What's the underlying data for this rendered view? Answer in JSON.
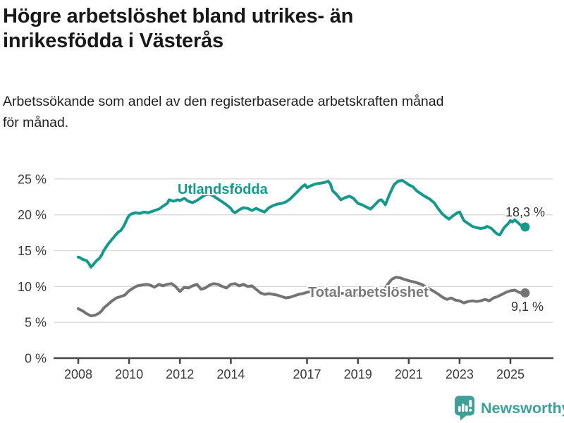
{
  "header": {
    "title_line1": "Högre arbetslöshet bland utrikes- än",
    "title_line2": "inrikesfödda i Västerås",
    "subtitle_line1": "Arbetssökande som andel av den registerbaserade arbetskraften månad",
    "subtitle_line2": "för månad."
  },
  "footer": {
    "brand": "Newsworthy"
  },
  "colors": {
    "teal": "#14998B",
    "gray": "#747474",
    "gridline": "#D9D9D9",
    "axis": "#454545",
    "tick_text": "#3B3B3B",
    "value_label": "#333333",
    "logo_teal": "#3FA09A"
  },
  "chart_data": {
    "type": "line",
    "title": "Högre arbetslöshet bland utrikes- än inrikesfödda i Västerås",
    "subtitle": "Arbetssökande som andel av den registerbaserade arbetskraften månad för månad.",
    "xlabel": "",
    "ylabel": "",
    "y_unit": "%",
    "x_range": [
      2007.6,
      2026.2
    ],
    "ylim": [
      0,
      25
    ],
    "grid": true,
    "legend_position": "inline-labels",
    "y_ticks": [
      {
        "value": 0,
        "label": "0 %"
      },
      {
        "value": 5,
        "label": "5 %"
      },
      {
        "value": 10,
        "label": "10 %"
      },
      {
        "value": 15,
        "label": "15 %"
      },
      {
        "value": 20,
        "label": "20 %"
      },
      {
        "value": 25,
        "label": "25 %"
      }
    ],
    "x_ticks": [
      {
        "value": 2008,
        "label": "2008"
      },
      {
        "value": 2010,
        "label": "2010"
      },
      {
        "value": 2012,
        "label": "2012"
      },
      {
        "value": 2014,
        "label": "2014"
      },
      {
        "value": 2017,
        "label": "2017"
      },
      {
        "value": 2019,
        "label": "2019"
      },
      {
        "value": 2021,
        "label": "2021"
      },
      {
        "value": 2023,
        "label": "2023"
      },
      {
        "value": 2025,
        "label": "2025"
      }
    ],
    "series": [
      {
        "name": "Utlandsfödda",
        "end_label": "18,3 %",
        "end_value": 18.3,
        "color": "#14998B",
        "points": [
          [
            2008.0,
            14.1
          ],
          [
            2008.08,
            14.0
          ],
          [
            2008.17,
            13.8
          ],
          [
            2008.25,
            13.7
          ],
          [
            2008.33,
            13.6
          ],
          [
            2008.42,
            13.2
          ],
          [
            2008.5,
            12.7
          ],
          [
            2008.58,
            13.0
          ],
          [
            2008.67,
            13.4
          ],
          [
            2008.75,
            13.7
          ],
          [
            2008.83,
            13.9
          ],
          [
            2008.92,
            14.4
          ],
          [
            2009.0,
            15.0
          ],
          [
            2009.17,
            15.9
          ],
          [
            2009.33,
            16.6
          ],
          [
            2009.5,
            17.3
          ],
          [
            2009.58,
            17.6
          ],
          [
            2009.67,
            17.8
          ],
          [
            2009.75,
            18.2
          ],
          [
            2009.83,
            18.7
          ],
          [
            2009.92,
            19.4
          ],
          [
            2010.0,
            19.9
          ],
          [
            2010.08,
            20.1
          ],
          [
            2010.25,
            20.3
          ],
          [
            2010.42,
            20.2
          ],
          [
            2010.58,
            20.4
          ],
          [
            2010.75,
            20.3
          ],
          [
            2010.92,
            20.5
          ],
          [
            2011.0,
            20.6
          ],
          [
            2011.17,
            20.8
          ],
          [
            2011.33,
            21.2
          ],
          [
            2011.5,
            21.6
          ],
          [
            2011.58,
            22.1
          ],
          [
            2011.75,
            21.9
          ],
          [
            2011.92,
            22.1
          ],
          [
            2012.0,
            22.0
          ],
          [
            2012.17,
            22.3
          ],
          [
            2012.33,
            21.9
          ],
          [
            2012.5,
            21.7
          ],
          [
            2012.67,
            22.0
          ],
          [
            2012.83,
            22.4
          ],
          [
            2013.0,
            22.8
          ],
          [
            2013.17,
            22.9
          ],
          [
            2013.33,
            22.6
          ],
          [
            2013.5,
            22.2
          ],
          [
            2013.67,
            21.8
          ],
          [
            2013.83,
            21.4
          ],
          [
            2014.0,
            20.9
          ],
          [
            2014.08,
            20.5
          ],
          [
            2014.17,
            20.3
          ],
          [
            2014.33,
            20.7
          ],
          [
            2014.5,
            21.0
          ],
          [
            2014.67,
            20.9
          ],
          [
            2014.83,
            20.6
          ],
          [
            2015.0,
            20.9
          ],
          [
            2015.17,
            20.6
          ],
          [
            2015.33,
            20.4
          ],
          [
            2015.5,
            21.0
          ],
          [
            2015.67,
            21.3
          ],
          [
            2015.83,
            21.5
          ],
          [
            2016.0,
            21.6
          ],
          [
            2016.17,
            21.8
          ],
          [
            2016.33,
            22.2
          ],
          [
            2016.5,
            22.8
          ],
          [
            2016.67,
            23.4
          ],
          [
            2016.83,
            24.0
          ],
          [
            2016.92,
            24.2
          ],
          [
            2017.0,
            23.8
          ],
          [
            2017.17,
            24.1
          ],
          [
            2017.33,
            24.3
          ],
          [
            2017.5,
            24.4
          ],
          [
            2017.67,
            24.5
          ],
          [
            2017.83,
            24.7
          ],
          [
            2017.92,
            24.3
          ],
          [
            2018.0,
            23.4
          ],
          [
            2018.17,
            22.8
          ],
          [
            2018.33,
            22.1
          ],
          [
            2018.5,
            22.4
          ],
          [
            2018.67,
            22.6
          ],
          [
            2018.83,
            22.3
          ],
          [
            2019.0,
            21.6
          ],
          [
            2019.17,
            21.4
          ],
          [
            2019.33,
            21.1
          ],
          [
            2019.5,
            20.8
          ],
          [
            2019.67,
            21.4
          ],
          [
            2019.83,
            22.0
          ],
          [
            2019.92,
            22.1
          ],
          [
            2020.0,
            21.8
          ],
          [
            2020.08,
            21.4
          ],
          [
            2020.25,
            22.9
          ],
          [
            2020.42,
            24.2
          ],
          [
            2020.58,
            24.7
          ],
          [
            2020.75,
            24.8
          ],
          [
            2020.92,
            24.4
          ],
          [
            2021.0,
            24.2
          ],
          [
            2021.17,
            23.9
          ],
          [
            2021.33,
            23.3
          ],
          [
            2021.5,
            22.9
          ],
          [
            2021.67,
            22.5
          ],
          [
            2021.83,
            22.2
          ],
          [
            2021.92,
            21.9
          ],
          [
            2022.0,
            21.7
          ],
          [
            2022.17,
            20.8
          ],
          [
            2022.33,
            20.1
          ],
          [
            2022.5,
            19.6
          ],
          [
            2022.58,
            19.4
          ],
          [
            2022.75,
            19.9
          ],
          [
            2022.92,
            20.3
          ],
          [
            2023.0,
            20.4
          ],
          [
            2023.17,
            19.2
          ],
          [
            2023.33,
            18.8
          ],
          [
            2023.5,
            18.4
          ],
          [
            2023.67,
            18.2
          ],
          [
            2023.83,
            18.1
          ],
          [
            2024.0,
            18.2
          ],
          [
            2024.08,
            18.4
          ],
          [
            2024.25,
            18.1
          ],
          [
            2024.42,
            17.5
          ],
          [
            2024.5,
            17.3
          ],
          [
            2024.58,
            17.2
          ],
          [
            2024.75,
            18.2
          ],
          [
            2024.92,
            18.8
          ],
          [
            2025.0,
            19.2
          ],
          [
            2025.08,
            19.0
          ],
          [
            2025.17,
            19.3
          ],
          [
            2025.33,
            18.8
          ],
          [
            2025.42,
            18.5
          ],
          [
            2025.5,
            18.6
          ],
          [
            2025.58,
            18.3
          ]
        ]
      },
      {
        "name": "Total arbetslöshet",
        "end_label": "9,1 %",
        "end_value": 9.1,
        "color": "#747474",
        "points": [
          [
            2008.0,
            6.9
          ],
          [
            2008.17,
            6.6
          ],
          [
            2008.33,
            6.2
          ],
          [
            2008.5,
            5.9
          ],
          [
            2008.67,
            6.0
          ],
          [
            2008.83,
            6.3
          ],
          [
            2008.92,
            6.6
          ],
          [
            2009.0,
            7.0
          ],
          [
            2009.17,
            7.5
          ],
          [
            2009.33,
            8.0
          ],
          [
            2009.5,
            8.4
          ],
          [
            2009.67,
            8.6
          ],
          [
            2009.83,
            8.8
          ],
          [
            2010.0,
            9.4
          ],
          [
            2010.17,
            9.8
          ],
          [
            2010.33,
            10.1
          ],
          [
            2010.5,
            10.2
          ],
          [
            2010.67,
            10.3
          ],
          [
            2010.83,
            10.2
          ],
          [
            2011.0,
            9.9
          ],
          [
            2011.17,
            10.3
          ],
          [
            2011.33,
            10.1
          ],
          [
            2011.5,
            10.3
          ],
          [
            2011.67,
            10.4
          ],
          [
            2011.83,
            10.0
          ],
          [
            2012.0,
            9.3
          ],
          [
            2012.17,
            9.9
          ],
          [
            2012.33,
            9.8
          ],
          [
            2012.5,
            10.1
          ],
          [
            2012.67,
            10.3
          ],
          [
            2012.83,
            9.6
          ],
          [
            2013.0,
            9.8
          ],
          [
            2013.17,
            10.2
          ],
          [
            2013.33,
            10.4
          ],
          [
            2013.5,
            10.3
          ],
          [
            2013.67,
            10.0
          ],
          [
            2013.83,
            9.8
          ],
          [
            2014.0,
            10.3
          ],
          [
            2014.17,
            10.4
          ],
          [
            2014.33,
            10.1
          ],
          [
            2014.5,
            10.3
          ],
          [
            2014.67,
            10.0
          ],
          [
            2014.83,
            10.1
          ],
          [
            2015.0,
            9.6
          ],
          [
            2015.17,
            9.1
          ],
          [
            2015.33,
            8.9
          ],
          [
            2015.5,
            9.0
          ],
          [
            2015.67,
            8.9
          ],
          [
            2015.83,
            8.8
          ],
          [
            2016.0,
            8.6
          ],
          [
            2016.17,
            8.4
          ],
          [
            2016.33,
            8.5
          ],
          [
            2016.5,
            8.7
          ],
          [
            2016.67,
            8.9
          ],
          [
            2016.83,
            9.0
          ],
          [
            2017.0,
            9.2
          ],
          [
            2017.25,
            9.3
          ],
          [
            2017.5,
            9.2
          ],
          [
            2017.75,
            9.1
          ],
          [
            2018.0,
            9.2
          ],
          [
            2018.25,
            9.1
          ],
          [
            2018.5,
            9.0
          ],
          [
            2018.75,
            8.9
          ],
          [
            2019.0,
            8.8
          ],
          [
            2019.25,
            8.7
          ],
          [
            2019.5,
            8.8
          ],
          [
            2019.75,
            9.0
          ],
          [
            2020.0,
            9.2
          ],
          [
            2020.17,
            10.3
          ],
          [
            2020.33,
            11.0
          ],
          [
            2020.5,
            11.3
          ],
          [
            2020.67,
            11.2
          ],
          [
            2020.83,
            11.0
          ],
          [
            2021.0,
            10.8
          ],
          [
            2021.25,
            10.6
          ],
          [
            2021.5,
            10.3
          ],
          [
            2021.75,
            9.8
          ],
          [
            2022.0,
            9.3
          ],
          [
            2022.17,
            8.9
          ],
          [
            2022.33,
            8.5
          ],
          [
            2022.5,
            8.2
          ],
          [
            2022.67,
            8.4
          ],
          [
            2022.83,
            8.1
          ],
          [
            2023.0,
            8.0
          ],
          [
            2023.17,
            7.7
          ],
          [
            2023.33,
            7.9
          ],
          [
            2023.5,
            8.0
          ],
          [
            2023.67,
            7.9
          ],
          [
            2023.83,
            8.0
          ],
          [
            2024.0,
            8.2
          ],
          [
            2024.17,
            8.0
          ],
          [
            2024.33,
            8.4
          ],
          [
            2024.5,
            8.6
          ],
          [
            2024.67,
            8.9
          ],
          [
            2024.83,
            9.2
          ],
          [
            2025.0,
            9.4
          ],
          [
            2025.17,
            9.5
          ],
          [
            2025.33,
            9.2
          ],
          [
            2025.5,
            9.0
          ],
          [
            2025.58,
            9.1
          ]
        ]
      }
    ]
  }
}
